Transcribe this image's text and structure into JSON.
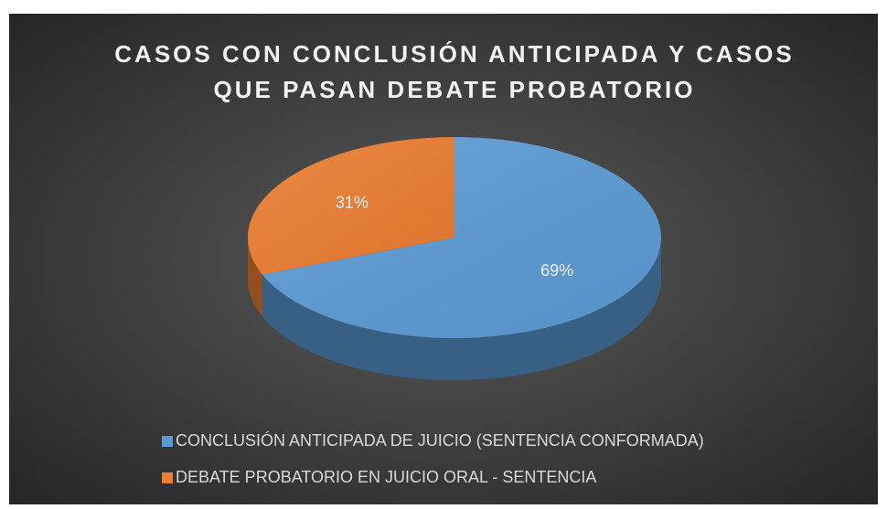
{
  "chart_data": {
    "type": "pie",
    "title": [
      "CASOS CON CONCLUSIÓN ANTICIPADA Y CASOS",
      "QUE PASAN DEBATE PROBATORIO"
    ],
    "categories": [
      "CONCLUSIÓN ANTICIPADA DE JUICIO (SENTENCIA CONFORMADA)",
      "DEBATE PROBATORIO EN JUICIO ORAL - SENTENCIA"
    ],
    "values": [
      69,
      31
    ],
    "value_labels": [
      "69%",
      "31%"
    ],
    "colors": [
      "#5b9bd5",
      "#ed7d31"
    ]
  }
}
